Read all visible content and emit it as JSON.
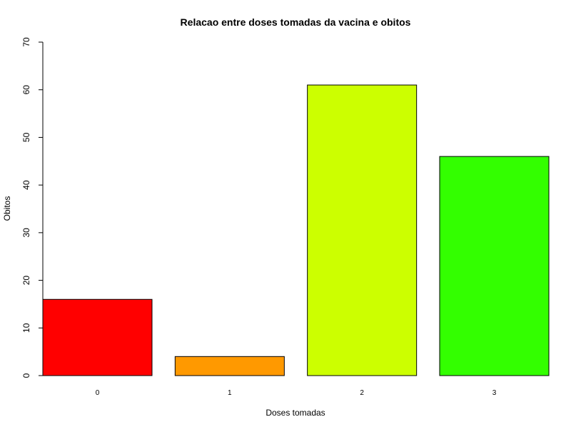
{
  "chart_data": {
    "type": "bar",
    "title": "Relacao entre doses tomadas da vacina e obitos",
    "xlabel": "Doses tomadas",
    "ylabel": "Obitos",
    "categories": [
      "0",
      "1",
      "2",
      "3"
    ],
    "values": [
      16,
      4,
      61,
      46
    ],
    "colors": [
      "#ff0000",
      "#ff9900",
      "#ccff00",
      "#33ff00"
    ],
    "ylim": [
      0,
      70
    ],
    "yticks": [
      "0",
      "10",
      "20",
      "30",
      "40",
      "50",
      "60",
      "70"
    ],
    "grid": false,
    "legend": "none"
  }
}
